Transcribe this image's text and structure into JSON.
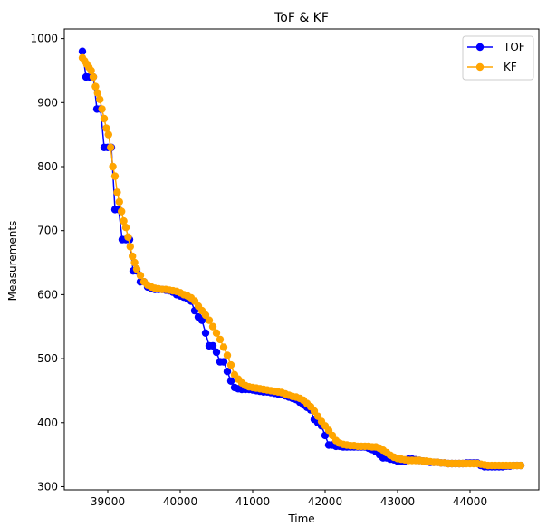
{
  "chart_data": {
    "type": "line",
    "title": "ToF & KF",
    "xlabel": "Time",
    "ylabel": "Measurements",
    "xlim": [
      38400,
      44950
    ],
    "ylim": [
      295,
      1015
    ],
    "xticks": [
      39000,
      40000,
      41000,
      42000,
      43000,
      44000
    ],
    "yticks": [
      300,
      400,
      500,
      600,
      700,
      800,
      900,
      1000
    ],
    "grid": false,
    "legend_position": "top-right",
    "series": [
      {
        "name": "TOF",
        "color": "#0000ff",
        "marker": "circle",
        "x": [
          38650,
          38700,
          38750,
          38800,
          38850,
          38900,
          38950,
          39000,
          39050,
          39100,
          39150,
          39200,
          39250,
          39300,
          39350,
          39400,
          39450,
          39500,
          39550,
          39600,
          39650,
          39700,
          39750,
          39800,
          39850,
          39900,
          39950,
          40000,
          40050,
          40100,
          40150,
          40200,
          40250,
          40300,
          40350,
          40400,
          40450,
          40500,
          40550,
          40600,
          40650,
          40700,
          40750,
          40800,
          40850,
          40900,
          40950,
          41000,
          41050,
          41100,
          41150,
          41200,
          41250,
          41300,
          41350,
          41400,
          41450,
          41500,
          41550,
          41600,
          41650,
          41700,
          41750,
          41800,
          41850,
          41900,
          41950,
          42000,
          42050,
          42100,
          42150,
          42200,
          42250,
          42300,
          42350,
          42400,
          42450,
          42500,
          42550,
          42600,
          42650,
          42700,
          42750,
          42800,
          42850,
          42900,
          42950,
          43000,
          43050,
          43100,
          43150,
          43200,
          43250,
          43300,
          43350,
          43400,
          43450,
          43500,
          43550,
          43600,
          43650,
          43700,
          43750,
          43800,
          43850,
          43900,
          43950,
          44000,
          44050,
          44100,
          44150,
          44200,
          44250,
          44300,
          44350,
          44400,
          44450,
          44500,
          44550,
          44600,
          44650,
          44700
        ],
        "y": [
          980,
          940,
          940,
          940,
          890,
          890,
          830,
          830,
          830,
          733,
          733,
          686,
          686,
          686,
          637,
          637,
          620,
          620,
          612,
          610,
          608,
          608,
          608,
          607,
          606,
          604,
          600,
          598,
          596,
          594,
          590,
          575,
          565,
          560,
          540,
          520,
          520,
          510,
          495,
          495,
          480,
          465,
          455,
          453,
          452,
          452,
          452,
          451,
          450,
          449,
          448,
          448,
          447,
          446,
          445,
          444,
          442,
          440,
          438,
          436,
          432,
          428,
          424,
          420,
          405,
          400,
          395,
          380,
          365,
          365,
          363,
          363,
          362,
          362,
          362,
          362,
          362,
          362,
          362,
          360,
          358,
          355,
          350,
          345,
          345,
          343,
          342,
          340,
          340,
          340,
          343,
          343,
          342,
          341,
          340,
          339,
          338,
          338,
          338,
          337,
          337,
          336,
          336,
          336,
          336,
          336,
          337,
          337,
          337,
          337,
          333,
          331,
          331,
          331,
          331,
          331,
          331,
          332,
          332,
          333,
          333,
          333
        ]
      },
      {
        "name": "KF",
        "color": "#ffa500",
        "marker": "circle",
        "x": [
          38650,
          38680,
          38710,
          38740,
          38770,
          38800,
          38830,
          38860,
          38890,
          38920,
          38950,
          38980,
          39010,
          39040,
          39070,
          39100,
          39130,
          39160,
          39190,
          39220,
          39250,
          39280,
          39310,
          39340,
          39370,
          39400,
          39450,
          39500,
          39550,
          39600,
          39650,
          39700,
          39750,
          39800,
          39850,
          39900,
          39950,
          40000,
          40050,
          40100,
          40150,
          40200,
          40250,
          40300,
          40350,
          40400,
          40450,
          40500,
          40550,
          40600,
          40650,
          40700,
          40750,
          40800,
          40850,
          40900,
          40950,
          41000,
          41050,
          41100,
          41150,
          41200,
          41250,
          41300,
          41350,
          41400,
          41450,
          41500,
          41550,
          41600,
          41650,
          41700,
          41750,
          41800,
          41850,
          41900,
          41950,
          42000,
          42050,
          42100,
          42150,
          42200,
          42250,
          42300,
          42350,
          42400,
          42450,
          42500,
          42550,
          42600,
          42650,
          42700,
          42750,
          42800,
          42850,
          42900,
          42950,
          43000,
          43050,
          43100,
          43150,
          43200,
          43250,
          43300,
          43350,
          43400,
          43450,
          43500,
          43550,
          43600,
          43650,
          43700,
          43750,
          43800,
          43850,
          43900,
          43950,
          44000,
          44050,
          44100,
          44150,
          44200,
          44250,
          44300,
          44350,
          44400,
          44450,
          44500,
          44550,
          44600,
          44650,
          44700
        ],
        "y": [
          970,
          965,
          960,
          955,
          950,
          940,
          925,
          915,
          905,
          890,
          875,
          860,
          850,
          830,
          800,
          785,
          760,
          745,
          730,
          715,
          705,
          690,
          675,
          660,
          650,
          640,
          630,
          620,
          615,
          612,
          610,
          609,
          608,
          608,
          607,
          606,
          605,
          603,
          600,
          598,
          595,
          590,
          582,
          575,
          568,
          560,
          550,
          540,
          530,
          518,
          505,
          490,
          475,
          468,
          462,
          458,
          456,
          455,
          454,
          453,
          452,
          451,
          450,
          449,
          448,
          447,
          445,
          443,
          441,
          440,
          438,
          435,
          430,
          425,
          418,
          410,
          402,
          395,
          388,
          380,
          372,
          368,
          366,
          365,
          364,
          364,
          363,
          363,
          363,
          363,
          362,
          362,
          360,
          357,
          353,
          349,
          346,
          344,
          343,
          342,
          341,
          341,
          341,
          341,
          340,
          340,
          339,
          338,
          338,
          337,
          337,
          336,
          336,
          336,
          336,
          336,
          336,
          336,
          336,
          336,
          335,
          334,
          333,
          333,
          333,
          333,
          333,
          333,
          333,
          333,
          333,
          333
        ]
      }
    ]
  }
}
